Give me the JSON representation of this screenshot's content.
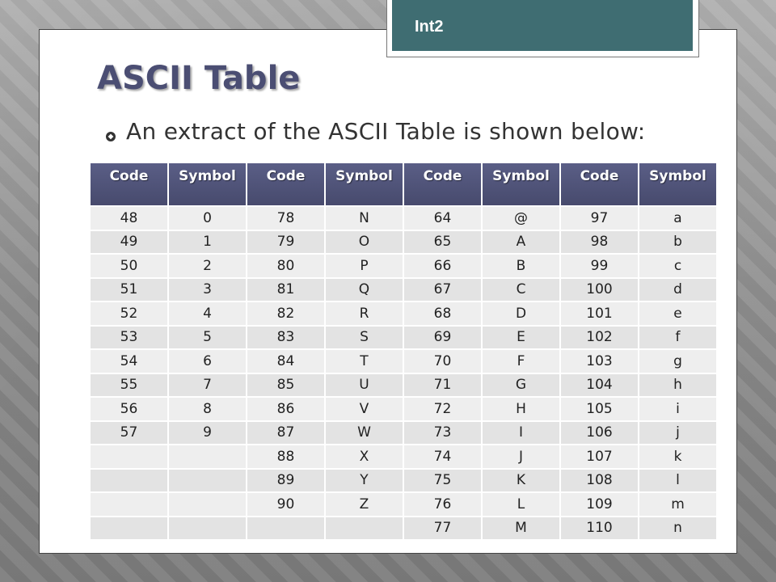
{
  "header_tag": "Int2",
  "slide": {
    "title": "ASCII Table",
    "bullet": "An extract of the ASCII Table is shown below:"
  },
  "table": {
    "headers": [
      "Code",
      "Symbol",
      "Code",
      "Symbol",
      "Code",
      "Symbol",
      "Code",
      "Symbol"
    ],
    "rows": [
      [
        "48",
        "0",
        "78",
        "N",
        "64",
        "@",
        "97",
        "a"
      ],
      [
        "49",
        "1",
        "79",
        "O",
        "65",
        "A",
        "98",
        "b"
      ],
      [
        "50",
        "2",
        "80",
        "P",
        "66",
        "B",
        "99",
        "c"
      ],
      [
        "51",
        "3",
        "81",
        "Q",
        "67",
        "C",
        "100",
        "d"
      ],
      [
        "52",
        "4",
        "82",
        "R",
        "68",
        "D",
        "101",
        "e"
      ],
      [
        "53",
        "5",
        "83",
        "S",
        "69",
        "E",
        "102",
        "f"
      ],
      [
        "54",
        "6",
        "84",
        "T",
        "70",
        "F",
        "103",
        "g"
      ],
      [
        "55",
        "7",
        "85",
        "U",
        "71",
        "G",
        "104",
        "h"
      ],
      [
        "56",
        "8",
        "86",
        "V",
        "72",
        "H",
        "105",
        "i"
      ],
      [
        "57",
        "9",
        "87",
        "W",
        "73",
        "I",
        "106",
        "j"
      ],
      [
        "",
        "",
        "88",
        "X",
        "74",
        "J",
        "107",
        "k"
      ],
      [
        "",
        "",
        "89",
        "Y",
        "75",
        "K",
        "108",
        "l"
      ],
      [
        "",
        "",
        "90",
        "Z",
        "76",
        "L",
        "109",
        "m"
      ],
      [
        "",
        "",
        "",
        "",
        "77",
        "M",
        "110",
        "n"
      ]
    ]
  },
  "colors": {
    "header_fill": "#4b4e73",
    "tag_fill": "#3f6d72",
    "title_color": "#4b4e73"
  },
  "icons": {
    "bullet": "hollow-diamond-bullet-icon"
  }
}
